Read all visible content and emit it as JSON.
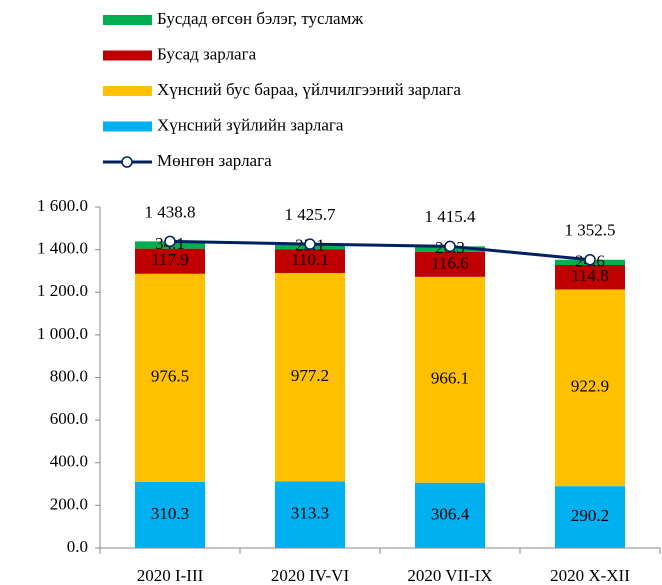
{
  "chart_data": {
    "type": "bar",
    "categories": [
      "2020 I-III",
      "2020 IV-VI",
      "2020 VII-IX",
      "2020 X-XII"
    ],
    "series": [
      {
        "name": "Хүнсний зүйлийн зарлага",
        "color": "#00B0F0",
        "values": [
          310.3,
          313.3,
          306.4,
          290.2
        ]
      },
      {
        "name": "Хүнсний бус бараа, үйлчилгээний зарлага",
        "color": "#FFC000",
        "values": [
          976.5,
          977.2,
          966.1,
          922.9
        ]
      },
      {
        "name": "Бусад зарлага",
        "color": "#C00000",
        "values": [
          117.9,
          110.1,
          116.6,
          114.8
        ]
      },
      {
        "name": "Бусдад өгсөн бэлэг, тусламж",
        "color": "#00B050",
        "values": [
          34.1,
          25.1,
          26.3,
          24.6
        ]
      },
      {
        "name": "Мөнгөн зарлага",
        "color": "#002060",
        "type": "line",
        "values": [
          1438.8,
          1425.7,
          1415.4,
          1352.5
        ],
        "value_labels": [
          "1 438.8",
          "1 425.7",
          "1 415.4",
          "1 352.5"
        ]
      }
    ],
    "stacked": true,
    "ylim": [
      0,
      1600
    ],
    "yticks": [
      {
        "value": 0,
        "label": "0.0"
      },
      {
        "value": 200,
        "label": "200.0"
      },
      {
        "value": 400,
        "label": "400.0"
      },
      {
        "value": 600,
        "label": "600.0"
      },
      {
        "value": 800,
        "label": "800.0"
      },
      {
        "value": 1000,
        "label": "1 000.0"
      },
      {
        "value": 1200,
        "label": "1 200.0"
      },
      {
        "value": 1400,
        "label": "1 400.0"
      },
      {
        "value": 1600,
        "label": "1 600.0"
      }
    ],
    "legend": "top-left"
  }
}
